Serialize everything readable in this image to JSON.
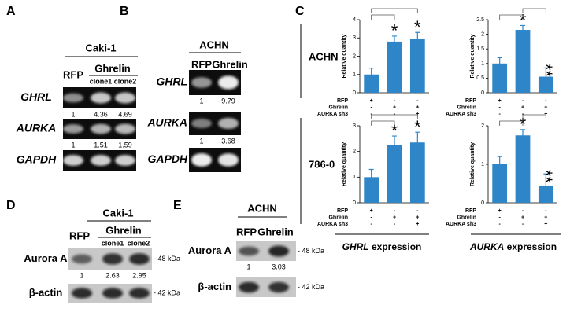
{
  "panels": {
    "A": {
      "label": "A",
      "cell_line": "Caki-1",
      "control": "RFP",
      "group": "Ghrelin",
      "clones": [
        "clone1",
        "clone2"
      ],
      "gels": [
        {
          "gene": "GHRL",
          "quant": [
            1,
            4.36,
            4.69
          ]
        },
        {
          "gene": "AURKA",
          "quant": [
            1,
            1.51,
            1.59
          ]
        },
        {
          "gene": "GAPDH"
        }
      ]
    },
    "B": {
      "label": "B",
      "cell_line": "ACHN",
      "lanes": [
        "RFP",
        "Ghrelin"
      ],
      "gels": [
        {
          "gene": "GHRL",
          "quant": [
            1,
            9.79
          ]
        },
        {
          "gene": "AURKA",
          "quant": [
            1,
            3.68
          ]
        },
        {
          "gene": "GAPDH"
        }
      ]
    },
    "C": {
      "label": "C",
      "rows": [
        "ACHN",
        "786-0"
      ],
      "columns": [
        {
          "gene": "GHRL",
          "suffix": "expression"
        },
        {
          "gene": "AURKA",
          "suffix": "expression"
        }
      ]
    },
    "D": {
      "label": "D",
      "cell_line": "Caki-1",
      "control": "RFP",
      "group": "Ghrelin",
      "clones": [
        "clone1",
        "clone2"
      ],
      "blots": [
        {
          "protein": "Aurora A",
          "size": "- 48 kDa",
          "quant": [
            1,
            2.63,
            2.95
          ]
        },
        {
          "protein": "β-actin",
          "size": "- 42 kDa"
        }
      ]
    },
    "E": {
      "label": "E",
      "cell_line": "ACHN",
      "lanes": [
        "RFP",
        "Ghrelin"
      ],
      "blots": [
        {
          "protein": "Aurora A",
          "size": "- 48 kDa",
          "quant": [
            1,
            3.03
          ]
        },
        {
          "protein": "β-actin",
          "size": "- 42 kDa"
        }
      ]
    }
  },
  "chart_data": [
    {
      "type": "bar",
      "y_label": "Relative quantity",
      "color": "#2e86c8",
      "values": [
        1,
        2.8,
        2.95
      ],
      "errors": [
        0.35,
        0.3,
        0.35
      ],
      "annotations": [
        null,
        "*",
        "*"
      ],
      "ylim": [
        0,
        4
      ],
      "yticks": [
        0,
        1,
        2,
        3,
        4
      ],
      "conditions": [
        {
          "name": "RFP",
          "marks": [
            "+",
            "-",
            "-"
          ]
        },
        {
          "name": "Ghrelin",
          "marks": [
            "-",
            "+",
            "+"
          ]
        },
        {
          "name": "AURKA sh3",
          "marks": [
            "-",
            "-",
            "+"
          ]
        }
      ]
    },
    {
      "type": "bar",
      "y_label": "Relative quantity",
      "color": "#2e86c8",
      "values": [
        1,
        2.15,
        0.55
      ],
      "errors": [
        0.2,
        0.15,
        0.3
      ],
      "annotations": [
        null,
        "*",
        "**"
      ],
      "ylim": [
        0,
        2.5
      ],
      "yticks": [
        0,
        0.5,
        1,
        1.5,
        2,
        2.5
      ],
      "conditions": [
        {
          "name": "RFP",
          "marks": [
            "+",
            "-",
            "-"
          ]
        },
        {
          "name": "Ghrelin",
          "marks": [
            "-",
            "+",
            "+"
          ]
        },
        {
          "name": "AURKA sh3",
          "marks": [
            "-",
            "-",
            "+"
          ]
        }
      ]
    },
    {
      "type": "bar",
      "y_label": "Relative quantity",
      "color": "#2e86c8",
      "values": [
        1,
        2.25,
        2.35
      ],
      "errors": [
        0.3,
        0.35,
        0.4
      ],
      "annotations": [
        null,
        "*",
        "*"
      ],
      "ylim": [
        0,
        3
      ],
      "yticks": [
        0,
        1,
        2,
        3
      ],
      "conditions": [
        {
          "name": "RFP",
          "marks": [
            "+",
            "-",
            "-"
          ]
        },
        {
          "name": "Ghrelin",
          "marks": [
            "-",
            "+",
            "+"
          ]
        },
        {
          "name": "AURKA sh3",
          "marks": [
            "-",
            "-",
            "+"
          ]
        }
      ]
    },
    {
      "type": "bar",
      "y_label": "Relative quantity",
      "color": "#2e86c8",
      "values": [
        1,
        1.75,
        0.45
      ],
      "errors": [
        0.2,
        0.15,
        0.3
      ],
      "annotations": [
        null,
        "*",
        "**"
      ],
      "ylim": [
        0,
        2
      ],
      "yticks": [
        0,
        1,
        2
      ],
      "conditions": [
        {
          "name": "RFP",
          "marks": [
            "+",
            "-",
            "-"
          ]
        },
        {
          "name": "Ghrelin",
          "marks": [
            "-",
            "+",
            "+"
          ]
        },
        {
          "name": "AURKA sh3",
          "marks": [
            "-",
            "-",
            "+"
          ]
        }
      ]
    }
  ]
}
